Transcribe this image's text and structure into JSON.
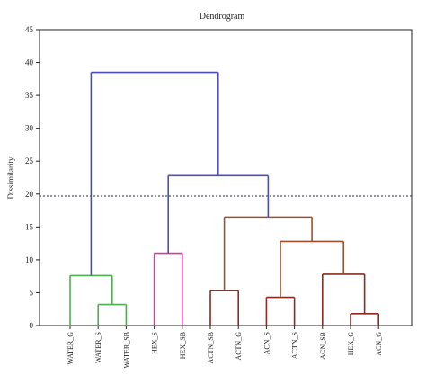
{
  "chart_data": {
    "type": "dendrogram",
    "title": "Dendrogram",
    "xlabel": "",
    "ylabel": "Dissimilarity",
    "ylim": [
      0,
      45
    ],
    "yticks": [
      0,
      5,
      10,
      15,
      20,
      25,
      30,
      35,
      40,
      45
    ],
    "grid": false,
    "truncation_line": {
      "value": 19.7,
      "style": "dotted",
      "color": "#1f2a44"
    },
    "leaves": [
      "WATER_G",
      "WATER_S",
      "WATER_SB",
      "HEX_S",
      "HEX_SB",
      "ACTN_SB",
      "ACTN_G",
      "ACN_S",
      "ACTN_S",
      "ACN_SB",
      "HEX_G",
      "ACN_G"
    ],
    "colors": {
      "green": "#4caf50",
      "magenta": "#d63aa5",
      "darkred": "#8b2a1f",
      "brown": "#a0502f",
      "blue": "#4d4fb8",
      "axis": "#222222"
    },
    "merges": [
      {
        "left": "L1",
        "right": "L2",
        "height": 3.2,
        "color": "green",
        "id": "C1"
      },
      {
        "left": "L0",
        "right": "C1",
        "height": 7.6,
        "color": "green",
        "id": "C2"
      },
      {
        "left": "L3",
        "right": "L4",
        "height": 11.0,
        "color": "magenta",
        "id": "C3"
      },
      {
        "left": "L5",
        "right": "L6",
        "height": 5.3,
        "color": "darkred",
        "id": "C4"
      },
      {
        "left": "L7",
        "right": "L8",
        "height": 4.3,
        "color": "darkred",
        "id": "C5"
      },
      {
        "left": "L10",
        "right": "L11",
        "height": 1.8,
        "color": "darkred",
        "id": "C6"
      },
      {
        "left": "L9",
        "right": "C6",
        "height": 7.8,
        "color": "darkred",
        "id": "C7"
      },
      {
        "left": "C5",
        "right": "C7",
        "height": 12.8,
        "color": "brown",
        "id": "C8"
      },
      {
        "left": "C4",
        "right": "C8",
        "height": 16.5,
        "color": "brown",
        "id": "C9"
      },
      {
        "left": "C3",
        "right": "C9",
        "height": 22.8,
        "color": "blue",
        "id": "C10"
      },
      {
        "left": "C2",
        "right": "C10",
        "height": 38.5,
        "color": "blue",
        "id": "C11"
      }
    ]
  }
}
